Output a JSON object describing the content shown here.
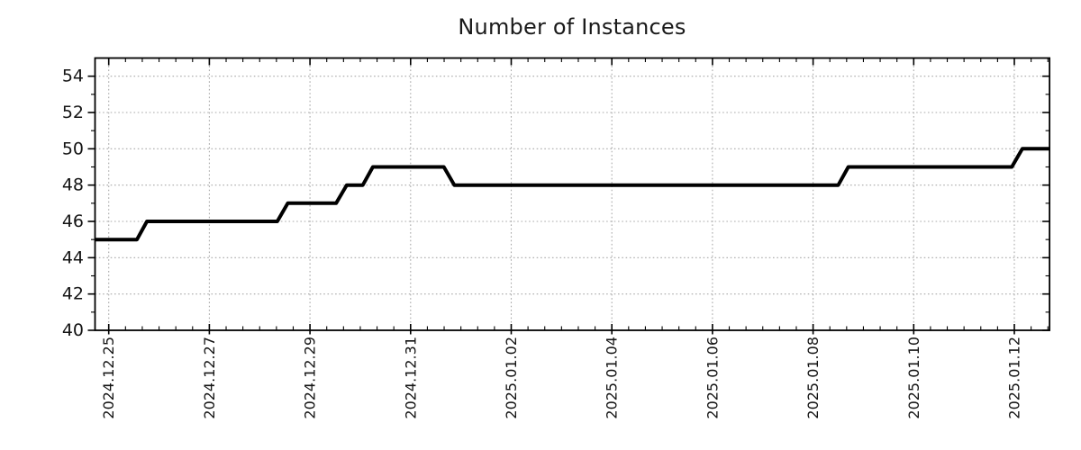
{
  "chart_data": {
    "type": "line",
    "subtype": "step-time-series",
    "title": "Number of Instances",
    "xlabel": "",
    "ylabel": "",
    "legend": null,
    "grid": {
      "on": true,
      "style": "dotted",
      "color": "#a8a8a8"
    },
    "line_color": "#000000",
    "line_width": 4,
    "background_color": "#ffffff",
    "axes_color": "#000000",
    "tick_label_color": "#141414",
    "ylim": [
      40,
      55
    ],
    "y_major_ticks": [
      40,
      42,
      44,
      46,
      48,
      50,
      52,
      54
    ],
    "y_tick_labels": [
      "40",
      "42",
      "44",
      "46",
      "48",
      "50",
      "52",
      "54"
    ],
    "y_minor_tick_step": 1,
    "x_epoch": "2024-12-25 00:00",
    "xlim_days": [
      -0.27,
      18.7
    ],
    "x_major_ticks": [
      {
        "label": "2024.12.25",
        "day": 0
      },
      {
        "label": "2024.12.27",
        "day": 2
      },
      {
        "label": "2024.12.29",
        "day": 4
      },
      {
        "label": "2024.12.31",
        "day": 6
      },
      {
        "label": "2025.01.02",
        "day": 8
      },
      {
        "label": "2025.01.04",
        "day": 10
      },
      {
        "label": "2025.01.06",
        "day": 12
      },
      {
        "label": "2025.01.08",
        "day": 14
      },
      {
        "label": "2025.01.10",
        "day": 16
      },
      {
        "label": "2025.01.12",
        "day": 18
      }
    ],
    "x_minor_tick_step_days": 0.3333333,
    "points": [
      {
        "time": "2024-12-24 17:30",
        "day": -0.27,
        "value": 45
      },
      {
        "time": "2024-12-25 13:30",
        "day": 0.56,
        "value": 45
      },
      {
        "time": "2024-12-25 18:15",
        "day": 0.76,
        "value": 46
      },
      {
        "time": "2024-12-28 08:25",
        "day": 3.35,
        "value": 46
      },
      {
        "time": "2024-12-28 13:30",
        "day": 3.56,
        "value": 47
      },
      {
        "time": "2024-12-29 12:30",
        "day": 4.52,
        "value": 47
      },
      {
        "time": "2024-12-29 17:30",
        "day": 4.73,
        "value": 48
      },
      {
        "time": "2024-12-30 01:10",
        "day": 5.05,
        "value": 48
      },
      {
        "time": "2024-12-30 06:00",
        "day": 5.25,
        "value": 49
      },
      {
        "time": "2024-12-31 15:50",
        "day": 6.66,
        "value": 49
      },
      {
        "time": "2024-12-31 20:55",
        "day": 6.87,
        "value": 48
      },
      {
        "time": "2025-01-08 12:00",
        "day": 14.5,
        "value": 48
      },
      {
        "time": "2025-01-08 16:50",
        "day": 14.7,
        "value": 49
      },
      {
        "time": "2025-01-11 22:50",
        "day": 17.95,
        "value": 49
      },
      {
        "time": "2025-01-12 03:50",
        "day": 18.16,
        "value": 50
      },
      {
        "time": "2025-01-12 16:50",
        "day": 18.7,
        "value": 50
      }
    ]
  }
}
